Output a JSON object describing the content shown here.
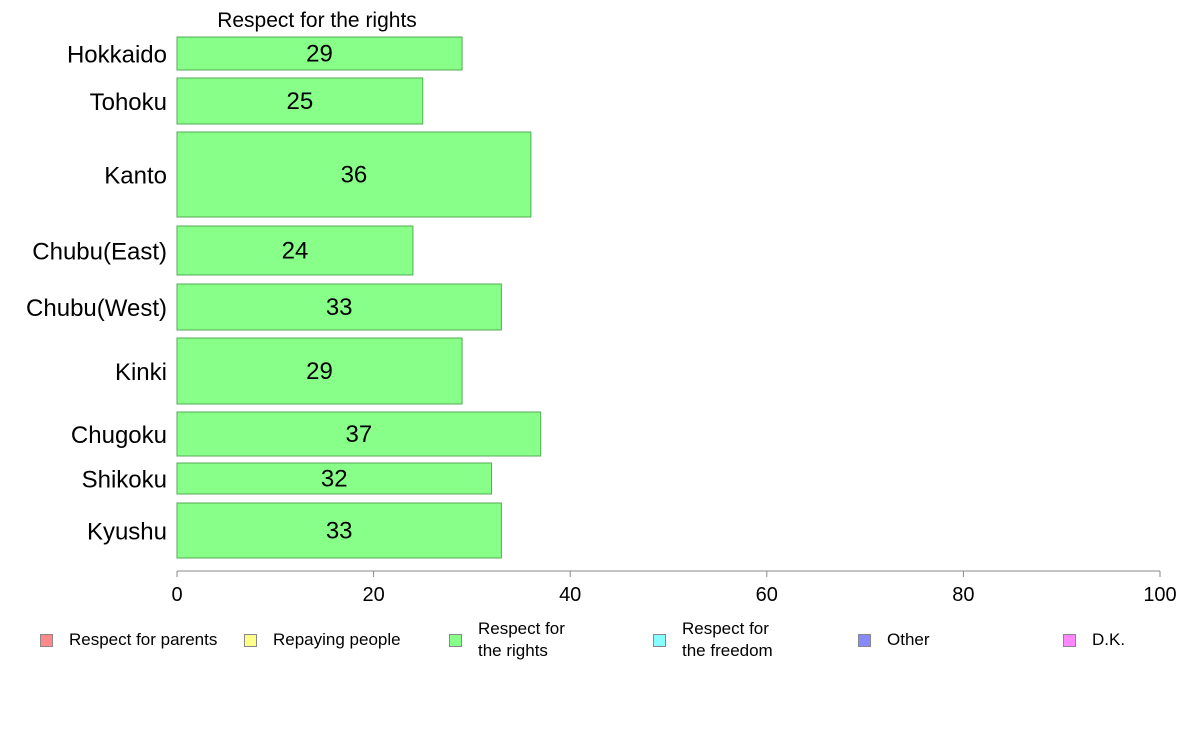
{
  "chart_data": {
    "type": "bar",
    "orientation": "horizontal",
    "title": "Respect for the rights",
    "categories": [
      "Hokkaido",
      "Tohoku",
      "Kanto",
      "Chubu(East)",
      "Chubu(West)",
      "Kinki",
      "Chugoku",
      "Shikoku",
      "Kyushu"
    ],
    "values": [
      29,
      25,
      36,
      24,
      33,
      29,
      37,
      32,
      33
    ],
    "data_labels": [
      "29",
      "25",
      "36",
      "24",
      "33",
      "29",
      "37",
      "32",
      "33"
    ],
    "xlim": [
      0,
      100
    ],
    "xticks": [
      "0",
      "20",
      "40",
      "60",
      "80",
      "100"
    ],
    "grid": false,
    "bar_color": "#88ff88",
    "bar_edge_color": "#55aa55",
    "legend_position": "bottom",
    "legend": [
      {
        "label": "Respect for parents",
        "color": "#ff8888"
      },
      {
        "label": "Repaying people",
        "color": "#ffff88"
      },
      {
        "label": "Respect for\nthe rights",
        "color": "#88ff88"
      },
      {
        "label": "Respect for\nthe freedom",
        "color": "#88ffff"
      },
      {
        "label": "Other",
        "color": "#8888ff"
      },
      {
        "label": "D.K.",
        "color": "#ff88ff"
      }
    ]
  }
}
